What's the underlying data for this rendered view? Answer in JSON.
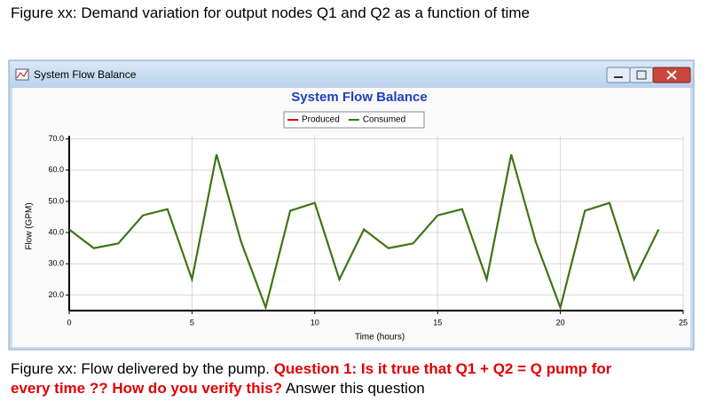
{
  "header": {
    "title": "Figure xx: Demand variation for output nodes Q1 and Q2  as a function of time"
  },
  "window": {
    "title": "System Flow Balance"
  },
  "chart_data": {
    "type": "line",
    "title": "System Flow Balance",
    "x_label": "Time (hours)",
    "y_label": "Flow (GPM)",
    "x": [
      0,
      1,
      2,
      3,
      4,
      5,
      6,
      7,
      8,
      9,
      10,
      11,
      12,
      13,
      14,
      15,
      16,
      17,
      18,
      19,
      20,
      21,
      22,
      23,
      24
    ],
    "series": [
      {
        "name": "Produced",
        "color": "#e00000",
        "values": [
          41,
          35,
          36.5,
          45.5,
          47.5,
          25,
          65,
          37,
          16,
          47,
          49.5,
          25,
          41,
          35,
          36.5,
          45.5,
          47.5,
          25,
          65,
          37,
          16,
          47,
          49.5,
          25,
          41
        ]
      },
      {
        "name": "Consumed",
        "color": "#2e7d12",
        "values": [
          41,
          35,
          36.5,
          45.5,
          47.5,
          25,
          65,
          37,
          16,
          47,
          49.5,
          25,
          41,
          35,
          36.5,
          45.5,
          47.5,
          25,
          65,
          37,
          16,
          47,
          49.5,
          25,
          41
        ]
      }
    ],
    "xlim": [
      0,
      25
    ],
    "xticks": [
      0,
      5,
      10,
      15,
      20,
      25
    ],
    "ylim": [
      15,
      71
    ],
    "yticks": [
      {
        "value": 20,
        "label": "20.0"
      },
      {
        "value": 30,
        "label": "30.0"
      },
      {
        "value": 40,
        "label": "40.0"
      },
      {
        "value": 50,
        "label": "50.0"
      },
      {
        "value": 60,
        "label": "60.0"
      },
      {
        "value": 70,
        "label": "70.0"
      }
    ],
    "grid": true,
    "legend": "top"
  },
  "caption": {
    "line1_plain": "Figure xx:  Flow delivered by the pump. ",
    "line1_question": "Question 1: Is it true that  Q1 + Q2 = Q pump for",
    "line2_question": "every time ?? How do you verify this?",
    "line2_plain": " Answer this question"
  }
}
